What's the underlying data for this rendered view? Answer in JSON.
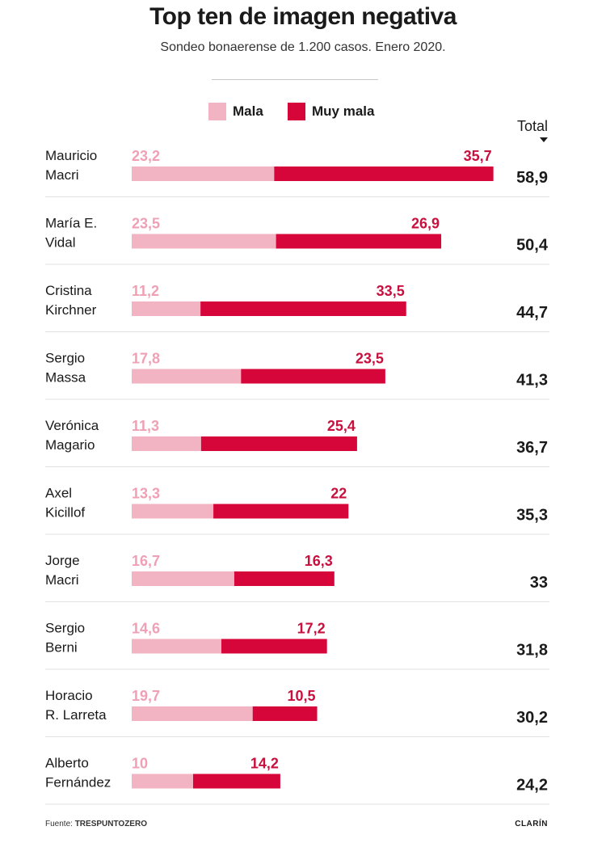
{
  "title": "Top ten de imagen negativa",
  "subtitle": "Sondeo bonaerense de 1.200 casos. Enero 2020.",
  "legend": {
    "mala_label": "Mala",
    "muy_mala_label": "Muy mala",
    "total_label": "Total"
  },
  "colors": {
    "mala": "#f2b3c2",
    "muy_mala": "#d7063a",
    "mala_text": "#f0a0b4",
    "muy_mala_text": "#c8103e"
  },
  "source_prefix": "Fuente:",
  "source_name": "TRESPUNTOZERO",
  "brand": "CLARÍN",
  "chart_data": {
    "type": "bar",
    "stacked": true,
    "orientation": "horizontal",
    "title": "Top ten de imagen negativa",
    "subtitle": "Sondeo bonaerense de 1.200 casos. Enero 2020.",
    "legend_position": "top",
    "grid": false,
    "categories": [
      [
        "Mauricio",
        "Macri"
      ],
      [
        "María E.",
        "Vidal"
      ],
      [
        "Cristina",
        "Kirchner"
      ],
      [
        "Sergio",
        "Massa"
      ],
      [
        "Verónica",
        "Magario"
      ],
      [
        "Axel",
        "Kicillof"
      ],
      [
        "Jorge",
        "Macri"
      ],
      [
        "Sergio",
        "Berni"
      ],
      [
        "Horacio",
        "R. Larreta"
      ],
      [
        "Alberto",
        "Fernández"
      ]
    ],
    "series": [
      {
        "name": "Mala",
        "values": [
          23.2,
          23.5,
          11.2,
          17.8,
          11.3,
          13.3,
          16.7,
          14.6,
          19.7,
          10
        ],
        "labels": [
          "23,2",
          "23,5",
          "11,2",
          "17,8",
          "11,3",
          "13,3",
          "16,7",
          "14,6",
          "19,7",
          "10"
        ]
      },
      {
        "name": "Muy mala",
        "values": [
          35.7,
          26.9,
          33.5,
          23.5,
          25.4,
          22,
          16.3,
          17.2,
          10.5,
          14.2
        ],
        "labels": [
          "35,7",
          "26,9",
          "33,5",
          "23,5",
          "25,4",
          "22",
          "16,3",
          "17,2",
          "10,5",
          "14,2"
        ]
      }
    ],
    "totals": [
      58.9,
      50.4,
      44.7,
      41.3,
      36.7,
      35.3,
      33,
      31.8,
      30.2,
      24.2
    ],
    "total_labels": [
      "58,9",
      "50,4",
      "44,7",
      "41,3",
      "36,7",
      "35,3",
      "33",
      "31,8",
      "30,2",
      "24,2"
    ]
  }
}
